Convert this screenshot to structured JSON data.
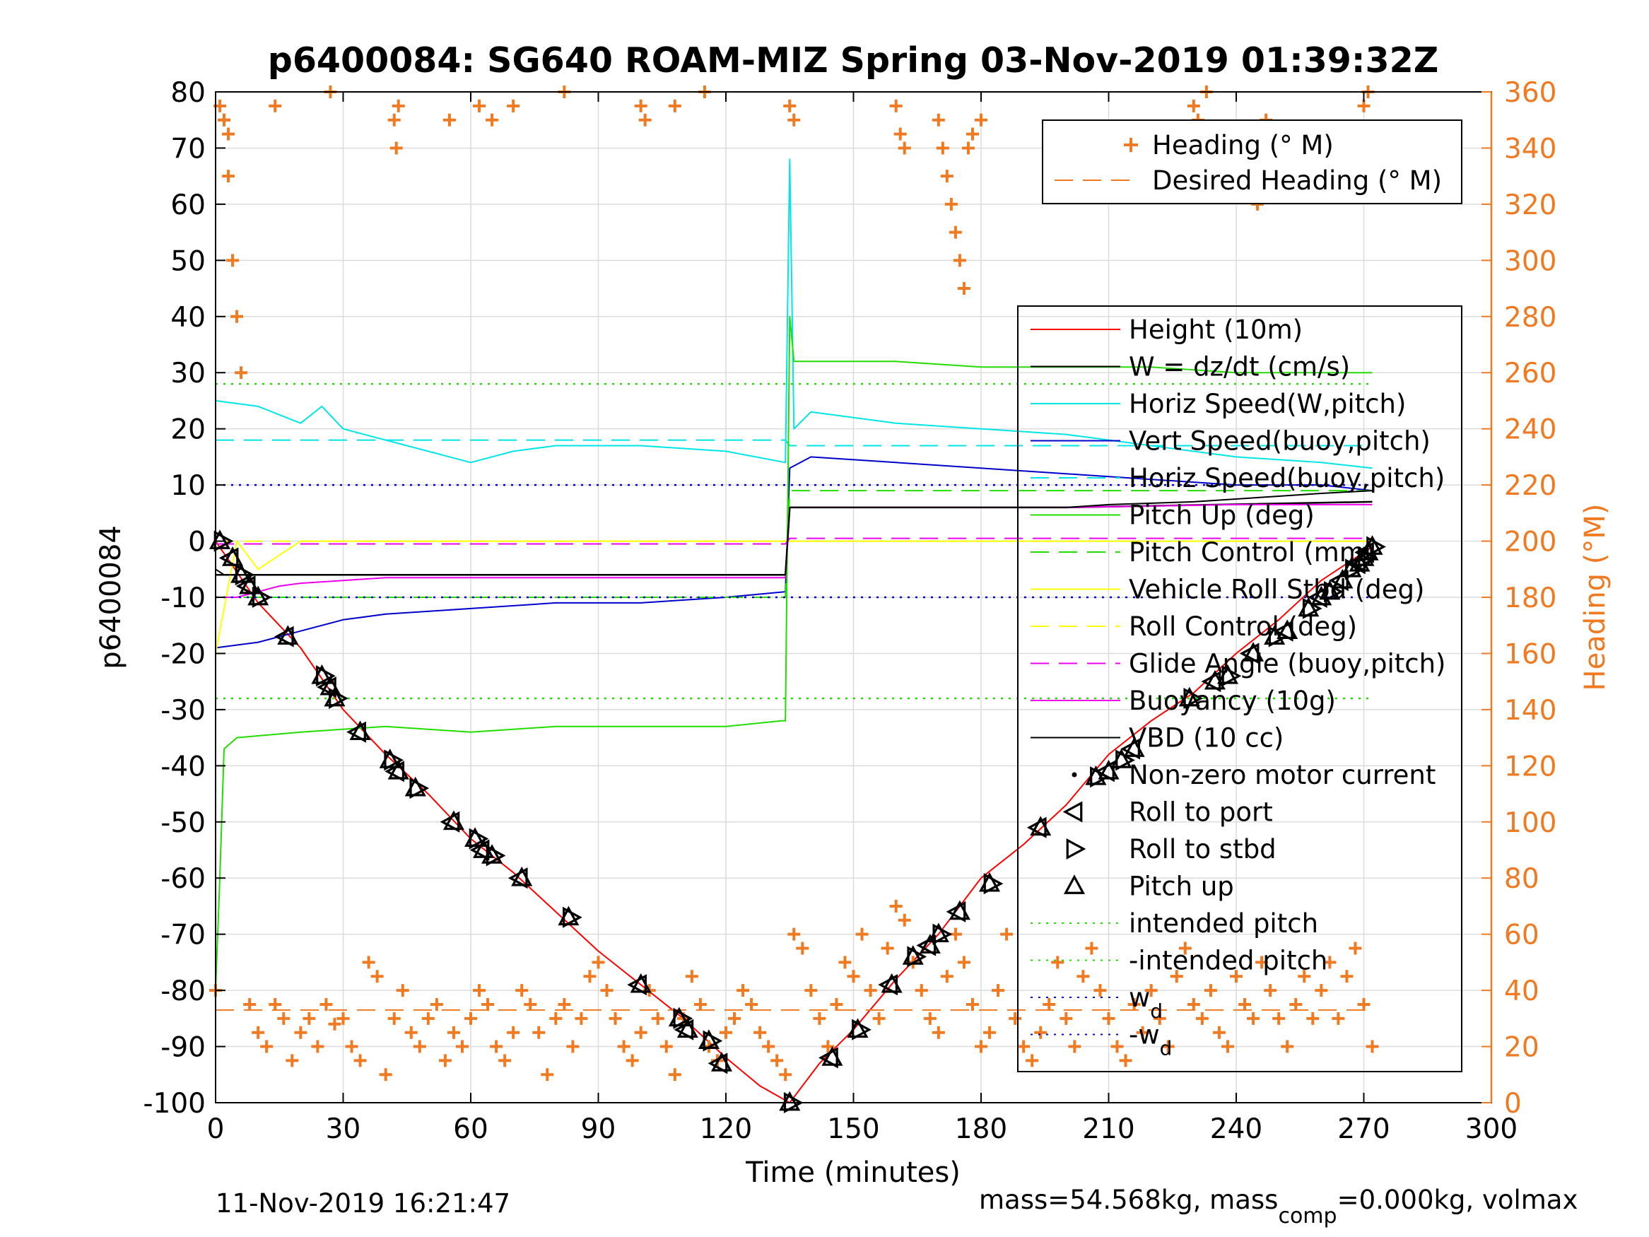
{
  "chart_data": {
    "type": "line",
    "title": "p6400084: SG640 ROAM-MIZ Spring 03-Nov-2019 01:39:32Z",
    "xlabel": "Time (minutes)",
    "ylabel": "p6400084",
    "ylabel_right": "Heading (°M)",
    "xlim": [
      0,
      300
    ],
    "ylim": [
      -100,
      80
    ],
    "ylim_right": [
      0,
      360
    ],
    "xticks": [
      "0",
      "30",
      "60",
      "90",
      "120",
      "150",
      "180",
      "210",
      "240",
      "270",
      "300"
    ],
    "yticks": [
      "80",
      "70",
      "60",
      "50",
      "40",
      "30",
      "20",
      "10",
      "0",
      "-10",
      "-20",
      "-30",
      "-40",
      "-50",
      "-60",
      "-70",
      "-80",
      "-90",
      "-100"
    ],
    "yticks_right": [
      "360",
      "340",
      "320",
      "300",
      "280",
      "260",
      "240",
      "220",
      "200",
      "180",
      "160",
      "140",
      "120",
      "100",
      "80",
      "60",
      "40",
      "20",
      "0"
    ],
    "grid": true,
    "legend_top": [
      {
        "label": "Heading (° M)",
        "color": "#F07A22"
      },
      {
        "label": "Desired Heading (° M)",
        "color": "#F07A22"
      }
    ],
    "legend": [
      {
        "label": "Height (10m)",
        "color": "#FF0000"
      },
      {
        "label": "W = dz/dt (cm/s)",
        "color": "#000000"
      },
      {
        "label": "Horiz Speed(W,pitch)",
        "color": "#00E5E5"
      },
      {
        "label": "Vert Speed(buoy,pitch)",
        "color": "#0000CC"
      },
      {
        "label": "Horiz Speed(buoy,pitch)",
        "color": "#00E5E5"
      },
      {
        "label": "Pitch Up (deg)",
        "color": "#22DD00"
      },
      {
        "label": "Pitch Control (mm)",
        "color": "#22DD00"
      },
      {
        "label": "Vehicle Roll Stbd (deg)",
        "color": "#FFFF00"
      },
      {
        "label": "Roll Control (deg)",
        "color": "#FFFF00"
      },
      {
        "label": "Glide Angle (buoy,pitch)",
        "color": "#EE00EE"
      },
      {
        "label": "Buoyancy (10g)",
        "color": "#EE00EE"
      },
      {
        "label": "VBD (10 cc)",
        "color": "#000000"
      },
      {
        "label": "Non-zero motor current",
        "color": "#000000"
      },
      {
        "label": "Roll to port",
        "color": "#000000"
      },
      {
        "label": "Roll to stbd",
        "color": "#000000"
      },
      {
        "label": "Pitch up",
        "color": "#000000"
      },
      {
        "label": "intended pitch",
        "color": "#22DD00"
      },
      {
        "label": "-intended pitch",
        "color": "#22DD00"
      },
      {
        "label": "w",
        "sub": "d",
        "color": "#0000CC"
      },
      {
        "label": "-w",
        "sub": "d",
        "color": "#0000CC"
      }
    ],
    "series": [
      {
        "name": "Height (10m)",
        "color": "#FF0000",
        "x": [
          0,
          10,
          20,
          30,
          40,
          50,
          60,
          70,
          80,
          90,
          100,
          110,
          120,
          128,
          135,
          142,
          150,
          160,
          170,
          180,
          190,
          200,
          210,
          220,
          230,
          240,
          250,
          260,
          272
        ],
        "y": [
          0,
          -11,
          -19,
          -30,
          -38,
          -45,
          -53,
          -59,
          -66,
          -73,
          -79,
          -85,
          -92,
          -97,
          -100,
          -93,
          -87,
          -78,
          -70,
          -60,
          -54,
          -47,
          -38,
          -32,
          -27,
          -20,
          -14,
          -7,
          -1
        ]
      },
      {
        "name": "W = dz/dt (cm/s)",
        "color": "#000000",
        "x": [
          0,
          2,
          134,
          135,
          200,
          272
        ],
        "y": [
          -6,
          -6,
          -6,
          6,
          6,
          7
        ]
      },
      {
        "name": "Horiz Speed(W,pitch)",
        "color": "#00E5E5",
        "x": [
          0,
          10,
          20,
          25,
          30,
          40,
          50,
          60,
          70,
          80,
          100,
          120,
          134,
          135,
          136,
          140,
          160,
          180,
          200,
          220,
          240,
          260,
          272
        ],
        "y": [
          25,
          24,
          21,
          24,
          20,
          18,
          16,
          14,
          16,
          17,
          17,
          16,
          14,
          68,
          20,
          23,
          21,
          20,
          19,
          17,
          15,
          14,
          13
        ]
      },
      {
        "name": "Vert Speed(buoy,pitch)",
        "color": "#0000CC",
        "x": [
          0,
          10,
          20,
          30,
          40,
          60,
          80,
          100,
          120,
          134,
          135,
          140,
          160,
          180,
          200,
          220,
          240,
          260,
          272
        ],
        "y": [
          -19,
          -18,
          -16,
          -14,
          -13,
          -12,
          -11,
          -11,
          -10,
          -9,
          13,
          15,
          14,
          13,
          12,
          11,
          10,
          10,
          9
        ]
      },
      {
        "name": "Horiz Speed(buoy,pitch)",
        "color": "#00E5E5",
        "x": [
          0,
          134,
          135,
          272
        ],
        "y": [
          18,
          18,
          17,
          17
        ]
      },
      {
        "name": "Pitch Up (deg)",
        "color": "#22DD00",
        "x": [
          0,
          1,
          2,
          5,
          20,
          40,
          60,
          80,
          100,
          120,
          133,
          134,
          135,
          136,
          140,
          160,
          180,
          200,
          220,
          240,
          260,
          272
        ],
        "y": [
          -80,
          -60,
          -37,
          -35,
          -34,
          -33,
          -34,
          -33,
          -33,
          -33,
          -32,
          -32,
          40,
          32,
          32,
          32,
          31,
          31,
          31,
          30,
          30,
          30
        ]
      },
      {
        "name": "Pitch Control (mm)",
        "color": "#22DD00",
        "x": [
          0,
          134,
          135,
          272
        ],
        "y": [
          -10,
          -10,
          9,
          9
        ]
      },
      {
        "name": "Vehicle Roll Stbd (deg)",
        "color": "#FFFF00",
        "x": [
          0,
          5,
          10,
          20,
          40,
          60,
          80,
          100,
          120,
          134,
          140,
          160,
          180,
          200,
          220,
          240,
          260,
          272
        ],
        "y": [
          -20,
          0,
          -5,
          0,
          0,
          0,
          0,
          0,
          0,
          0,
          0,
          0,
          0,
          0,
          0,
          0,
          0,
          0
        ]
      },
      {
        "name": "Roll Control (deg)",
        "color": "#FFFF00",
        "x": [
          0,
          272
        ],
        "y": [
          0,
          0
        ]
      },
      {
        "name": "Glide Angle (buoy,pitch)",
        "color": "#EE00EE",
        "x": [
          0,
          134,
          135,
          272
        ],
        "y": [
          -0.5,
          -0.5,
          0.5,
          0.5
        ]
      },
      {
        "name": "Buoyancy (10g)",
        "color": "#EE00EE",
        "x": [
          0,
          5,
          10,
          15,
          20,
          30,
          40,
          60,
          80,
          100,
          120,
          134,
          135,
          160,
          200,
          240,
          272
        ],
        "y": [
          -10,
          -10,
          -9,
          -8,
          -7.5,
          -7,
          -6.5,
          -6.5,
          -6.5,
          -6.5,
          -6.5,
          -6.5,
          6,
          6,
          6,
          6.5,
          6.5
        ]
      },
      {
        "name": "VBD (10 cc)",
        "color": "#000000",
        "x": [
          0,
          2,
          134,
          135,
          200,
          210,
          230,
          250,
          260,
          272
        ],
        "y": [
          -5,
          -6,
          -6,
          6,
          6,
          6.5,
          7,
          8,
          8.5,
          9
        ]
      },
      {
        "name": "intended pitch",
        "color": "#22DD00",
        "x": [
          0,
          272
        ],
        "y": [
          28,
          28
        ]
      },
      {
        "name": "-intended pitch",
        "color": "#22DD00",
        "x": [
          0,
          272
        ],
        "y": [
          -28,
          -28
        ]
      },
      {
        "name": "w_d",
        "color": "#0000CC",
        "x": [
          0,
          272
        ],
        "y": [
          10,
          10
        ]
      },
      {
        "name": "-w_d",
        "color": "#0000CC",
        "x": [
          0,
          272
        ],
        "y": [
          -10,
          -10
        ]
      },
      {
        "name": "Desired Heading (° M)",
        "axis": "right",
        "color": "#F07A22",
        "x": [
          0,
          272
        ],
        "y": [
          33,
          33
        ]
      }
    ],
    "pitch_up_markers": {
      "x": [
        1,
        4,
        6,
        8,
        10,
        17,
        25,
        27,
        28,
        34,
        41,
        43,
        47,
        56,
        61,
        63,
        65,
        72,
        83,
        100,
        109,
        111,
        116,
        119,
        135,
        145,
        151,
        159,
        164,
        168,
        170,
        175,
        182,
        194,
        207,
        210,
        213,
        216,
        229,
        235,
        238,
        244,
        249,
        252,
        257,
        260,
        262,
        265,
        267,
        269,
        270,
        271,
        272
      ],
      "y": [
        0,
        -3,
        -6,
        -8,
        -10,
        -17,
        -24,
        -26,
        -28,
        -34,
        -39,
        -41,
        -44,
        -50,
        -53,
        -55,
        -56,
        -60,
        -67,
        -79,
        -85,
        -87,
        -89,
        -93,
        -100,
        -92,
        -87,
        -79,
        -74,
        -72,
        -70,
        -66,
        -61,
        -51,
        -42,
        -41,
        -39,
        -37,
        -28,
        -25,
        -24,
        -20,
        -17,
        -16,
        -12,
        -10,
        -9,
        -7,
        -5,
        -4,
        -3,
        -2,
        -1
      ]
    },
    "heading": {
      "x": [
        0,
        2,
        3,
        4,
        5,
        6,
        8,
        10,
        12,
        14,
        16,
        18,
        20,
        22,
        24,
        26,
        28,
        30,
        32,
        34,
        36,
        38,
        40,
        42,
        44,
        46,
        48,
        50,
        52,
        54,
        56,
        58,
        60,
        62,
        64,
        66,
        68,
        70,
        72,
        74,
        76,
        78,
        80,
        82,
        84,
        86,
        88,
        90,
        92,
        94,
        96,
        98,
        100,
        102,
        104,
        106,
        108,
        110,
        112,
        114,
        116,
        118,
        120,
        122,
        124,
        126,
        128,
        130,
        132,
        134,
        136,
        138,
        140,
        142,
        144,
        146,
        148,
        150,
        152,
        154,
        156,
        158,
        160,
        162,
        164,
        166,
        168,
        170,
        172,
        174,
        176,
        178,
        180,
        182,
        184,
        186,
        188,
        190,
        192,
        194,
        196,
        198,
        200,
        202,
        204,
        206,
        208,
        210,
        212,
        214,
        216,
        218,
        220,
        222,
        224,
        226,
        228,
        230,
        232,
        234,
        236,
        238,
        240,
        242,
        244,
        246,
        248,
        250,
        252,
        254,
        256,
        258,
        260,
        262,
        264,
        266,
        268,
        270,
        272
      ],
      "y": [
        40,
        350,
        330,
        300,
        280,
        260,
        35,
        25,
        20,
        35,
        30,
        15,
        25,
        30,
        20,
        35,
        28,
        30,
        20,
        15,
        50,
        45,
        10,
        30,
        40,
        25,
        20,
        30,
        35,
        15,
        25,
        20,
        30,
        40,
        35,
        20,
        15,
        25,
        40,
        35,
        25,
        10,
        30,
        35,
        20,
        30,
        45,
        50,
        40,
        30,
        20,
        15,
        25,
        40,
        30,
        20,
        10,
        30,
        45,
        35,
        20,
        15,
        25,
        30,
        40,
        35,
        25,
        20,
        15,
        10,
        60,
        55,
        40,
        30,
        20,
        35,
        50,
        45,
        60,
        40,
        30,
        55,
        70,
        65,
        50,
        40,
        30,
        25,
        45,
        60,
        50,
        35,
        20,
        25,
        40,
        60,
        30,
        20,
        15,
        25,
        35,
        50,
        30,
        20,
        45,
        55,
        40,
        30,
        20,
        15,
        35,
        25,
        40,
        30,
        20,
        45,
        55,
        35,
        30,
        40,
        25,
        20,
        45,
        35,
        30,
        50,
        40,
        30,
        20,
        35,
        45,
        30,
        40,
        50,
        30,
        45,
        55,
        35,
        20
      ]
    },
    "heading_high": {
      "x": [
        1,
        2,
        3,
        14,
        27,
        42,
        42.5,
        43,
        55,
        62,
        65,
        70,
        82,
        100,
        101,
        108,
        115,
        135,
        136,
        160,
        161,
        162,
        170,
        171,
        172,
        173,
        174,
        175,
        176,
        177,
        178,
        180,
        230,
        231,
        232,
        233,
        244,
        245,
        246,
        247,
        270,
        271
      ],
      "y": [
        355,
        350,
        345,
        355,
        360,
        350,
        340,
        355,
        350,
        355,
        350,
        355,
        360,
        355,
        350,
        355,
        360,
        355,
        350,
        355,
        345,
        340,
        350,
        340,
        330,
        320,
        310,
        300,
        290,
        340,
        345,
        350,
        355,
        350,
        345,
        360,
        330,
        320,
        340,
        350,
        355,
        360
      ]
    }
  },
  "footer": {
    "timestamp": "11-Nov-2019 16:21:47",
    "mass_text": "mass=54.568kg, mass",
    "mass_sub": "comp",
    "mass_tail": "=0.000kg, volmax"
  }
}
